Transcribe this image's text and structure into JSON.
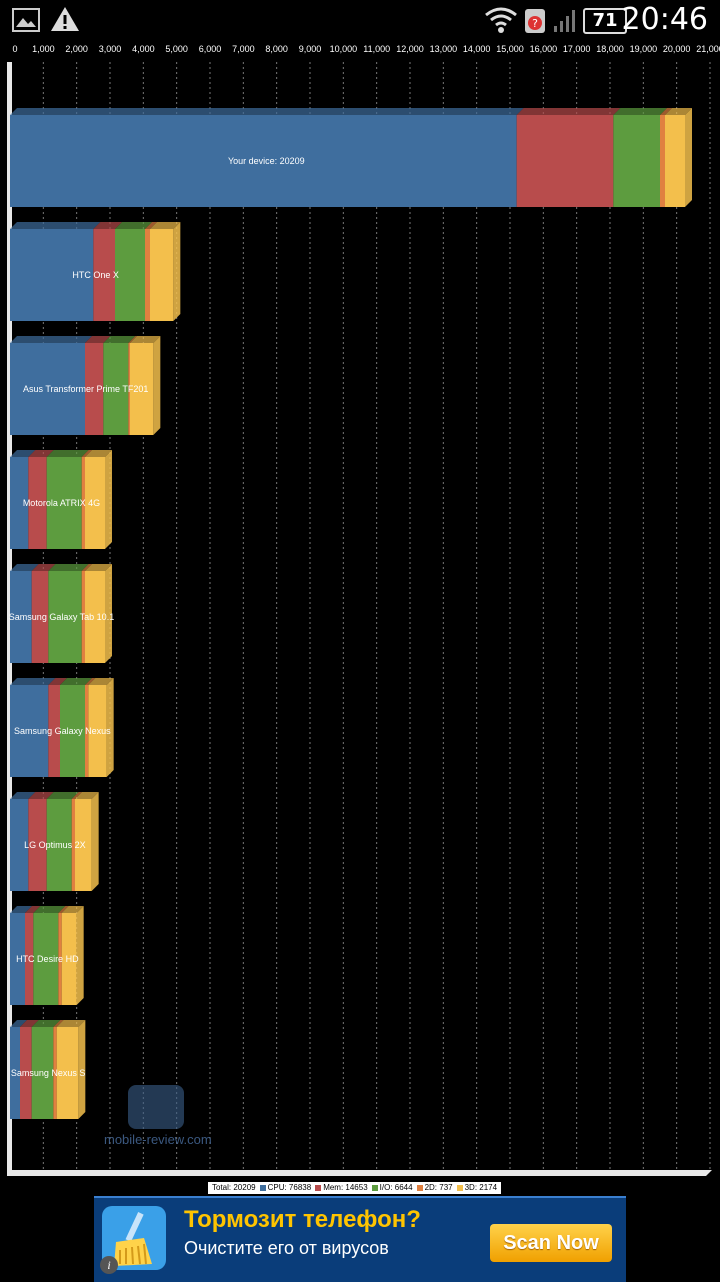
{
  "status_bar": {
    "time": "20:46",
    "battery": "71",
    "icons": [
      "gallery-icon",
      "warning-icon",
      "wifi-icon",
      "notification-icon",
      "signal-icon",
      "battery-icon"
    ]
  },
  "chart_data": {
    "type": "bar",
    "stacked": true,
    "orientation": "horizontal",
    "x_ticks": [
      "0",
      "1,000",
      "2,000",
      "3,000",
      "4,000",
      "5,000",
      "6,000",
      "7,000",
      "8,000",
      "9,000",
      "10,000",
      "11,000",
      "12,000",
      "13,000",
      "14,000",
      "15,000",
      "16,000",
      "17,000",
      "18,000",
      "19,000",
      "20,000",
      "21,000"
    ],
    "xlim": [
      0,
      21000
    ],
    "grid": true,
    "categories": [
      "Your device: 20209",
      "HTC One X",
      "Asus Transformer Prime TF201",
      "Motorola ATRIX 4G",
      "Samsung Galaxy Tab 10.1",
      "Samsung Galaxy Nexus",
      "LG Optimus 2X",
      "HTC Desire HD",
      "Samsung Nexus S"
    ],
    "series": [
      {
        "name": "CPU",
        "color": "#3f6e9e",
        "values": [
          15200,
          2500,
          2250,
          550,
          650,
          1150,
          550,
          450,
          300
        ]
      },
      {
        "name": "Mem",
        "color": "#b84c4c",
        "values": [
          2900,
          650,
          550,
          550,
          500,
          350,
          550,
          250,
          350
        ]
      },
      {
        "name": "I/O",
        "color": "#5d9c3f",
        "values": [
          1400,
          900,
          750,
          1050,
          1000,
          750,
          750,
          750,
          650
        ]
      },
      {
        "name": "2D",
        "color": "#e08040",
        "values": [
          150,
          150,
          50,
          100,
          100,
          100,
          100,
          100,
          100
        ]
      },
      {
        "name": "3D",
        "color": "#f3bf4c",
        "values": [
          600,
          700,
          700,
          600,
          600,
          550,
          500,
          450,
          650
        ]
      }
    ],
    "legend": {
      "position": "bottom",
      "total": "Total: 20209",
      "items": [
        "CPU: 76838",
        "Mem: 14653",
        "I/O: 6644",
        "2D: 737",
        "3D: 2174"
      ]
    }
  },
  "ad": {
    "title": "Тормозит телефон?",
    "subtitle": "Очистите его от вирусов",
    "button": "Scan Now",
    "info": "i",
    "icon": "broom-icon"
  },
  "watermark": "mobile-review.com"
}
